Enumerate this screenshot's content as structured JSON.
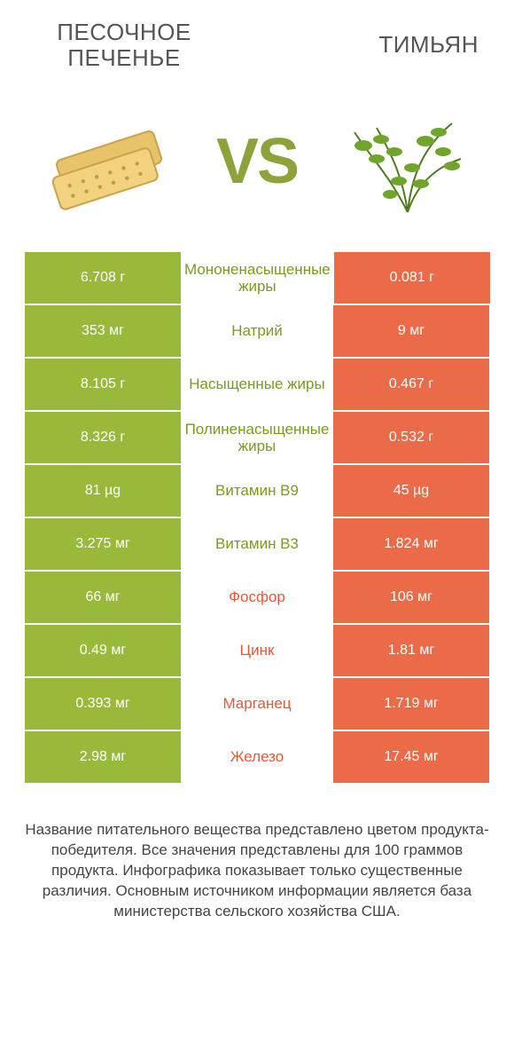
{
  "header": {
    "left_title": "Песочное печенье",
    "right_title": "Тимьян"
  },
  "vs": "VS",
  "colors": {
    "green": "#99b93a",
    "orange": "#eb6a47",
    "green_text": "#7a9a1f",
    "orange_text": "#e4583a"
  },
  "rows": [
    {
      "left": "6.708 г",
      "label": "Мононенасыщенные жиры",
      "right": "0.081 г",
      "winner": "left"
    },
    {
      "left": "353 мг",
      "label": "Натрий",
      "right": "9 мг",
      "winner": "left"
    },
    {
      "left": "8.105 г",
      "label": "Насыщенные жиры",
      "right": "0.467 г",
      "winner": "left"
    },
    {
      "left": "8.326 г",
      "label": "Полиненасыщенные жиры",
      "right": "0.532 г",
      "winner": "left"
    },
    {
      "left": "81 µg",
      "label": "Витамин B9",
      "right": "45 µg",
      "winner": "left"
    },
    {
      "left": "3.275 мг",
      "label": "Витамин B3",
      "right": "1.824 мг",
      "winner": "left"
    },
    {
      "left": "66 мг",
      "label": "Фосфор",
      "right": "106 мг",
      "winner": "right"
    },
    {
      "left": "0.49 мг",
      "label": "Цинк",
      "right": "1.81 мг",
      "winner": "right"
    },
    {
      "left": "0.393 мг",
      "label": "Марганец",
      "right": "1.719 мг",
      "winner": "right"
    },
    {
      "left": "2.98 мг",
      "label": "Железо",
      "right": "17.45 мг",
      "winner": "right"
    }
  ],
  "footnote": "Название питательного вещества представлено цветом продукта-победителя.\nВсе значения представлены для 100 граммов продукта. Инфографика показывает только существенные различия. Основным источником информации является база министерства сельского хозяйства США."
}
